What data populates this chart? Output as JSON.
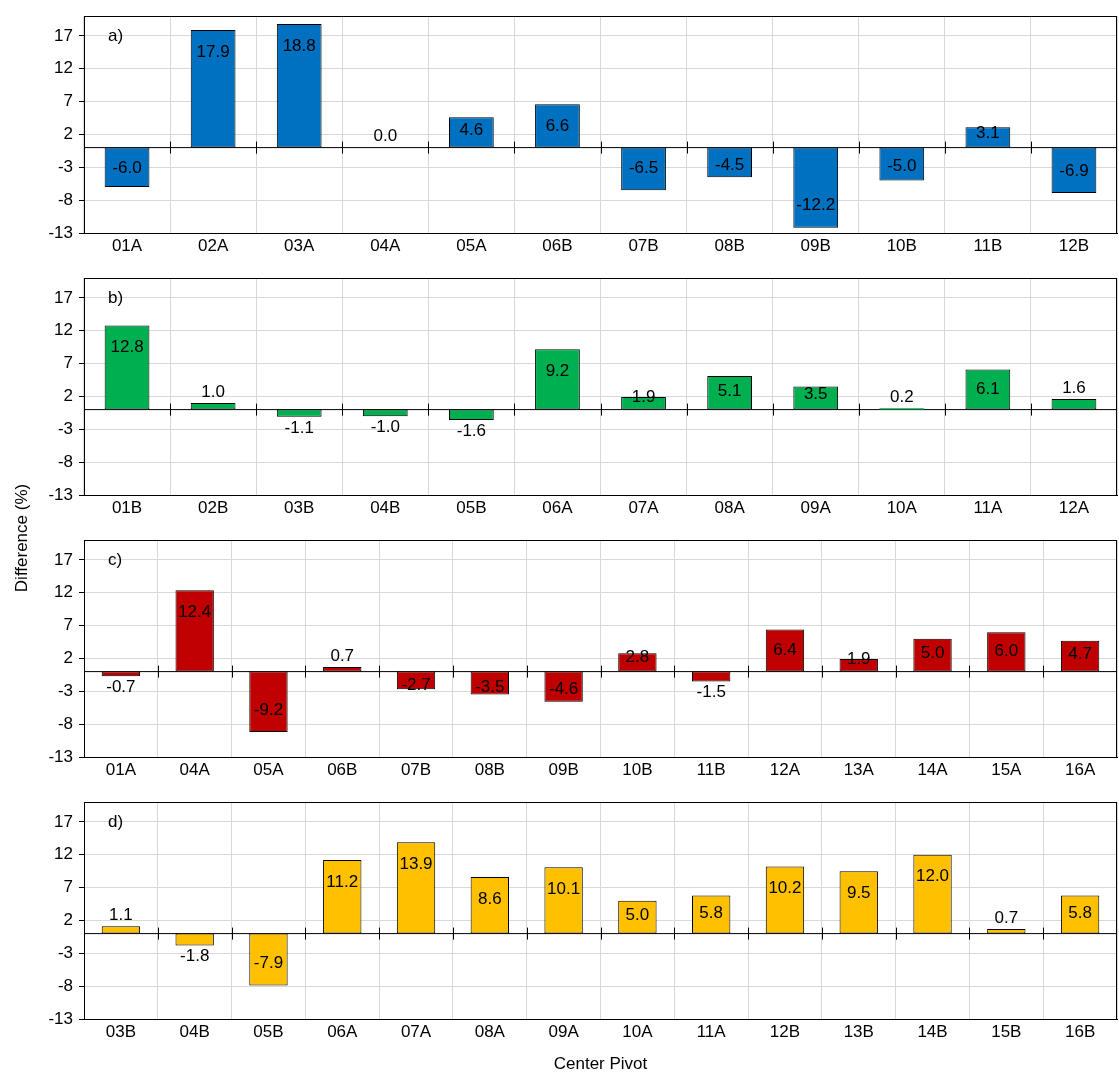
{
  "chart_data": [
    {
      "type": "bar",
      "categories": [
        "01A",
        "02A",
        "03A",
        "04A",
        "05A",
        "06B",
        "07B",
        "08B",
        "09B",
        "10B",
        "11B",
        "12B"
      ],
      "values": [
        -6.0,
        17.9,
        18.8,
        0.0,
        4.6,
        6.6,
        -6.5,
        -4.5,
        -12.2,
        -5.0,
        3.1,
        -6.9
      ],
      "value_labels": [
        "-6.0",
        "17.9",
        "18.8",
        "0.0",
        "4.6",
        "6.6",
        "-6.5",
        "-4.5",
        "-12.2",
        "-5.0",
        "3.1",
        "-6.9"
      ],
      "color": "#0070c0",
      "ylim": [
        -13,
        20
      ],
      "yticks": [
        -13,
        -8,
        -3,
        2,
        7,
        12,
        17
      ],
      "grid": true,
      "annotations": [
        "a)"
      ]
    },
    {
      "type": "bar",
      "categories": [
        "01B",
        "02B",
        "03B",
        "04B",
        "05B",
        "06A",
        "07A",
        "08A",
        "09A",
        "10A",
        "11A",
        "12A"
      ],
      "values": [
        12.8,
        1.0,
        -1.1,
        -1.0,
        -1.6,
        9.2,
        1.9,
        5.1,
        3.5,
        0.2,
        6.1,
        1.6
      ],
      "value_labels": [
        "12.8",
        "1.0",
        "-1.1",
        "-1.0",
        "-1.6",
        "9.2",
        "1.9",
        "5.1",
        "3.5",
        "0.2",
        "6.1",
        "1.6"
      ],
      "color": "#00b050",
      "ylim": [
        -13,
        20
      ],
      "yticks": [
        -13,
        -8,
        -3,
        2,
        7,
        12,
        17
      ],
      "grid": true,
      "annotations": [
        "b)"
      ],
      "ylabel": "Difference (%)"
    },
    {
      "type": "bar",
      "categories": [
        "01A",
        "04A",
        "05A",
        "06B",
        "07B",
        "08B",
        "09B",
        "10B",
        "11B",
        "12A",
        "13A",
        "14A",
        "15A",
        "16A"
      ],
      "values": [
        -0.7,
        12.4,
        -9.2,
        0.7,
        -2.7,
        -3.5,
        -4.6,
        2.8,
        -1.5,
        6.4,
        1.9,
        5.0,
        6.0,
        4.7
      ],
      "value_labels": [
        "-0.7",
        "12.4",
        "-9.2",
        "0.7",
        "-2.7",
        "-3.5",
        "-4.6",
        "2.8",
        "-1.5",
        "6.4",
        "1.9",
        "5.0",
        "6.0",
        "4.7"
      ],
      "color": "#c00000",
      "ylim": [
        -13,
        20
      ],
      "yticks": [
        -13,
        -8,
        -3,
        2,
        7,
        12,
        17
      ],
      "grid": true,
      "annotations": [
        "c)"
      ]
    },
    {
      "type": "bar",
      "categories": [
        "03B",
        "04B",
        "05B",
        "06A",
        "07A",
        "08A",
        "09A",
        "10A",
        "11A",
        "12B",
        "13B",
        "14B",
        "15B",
        "16B"
      ],
      "values": [
        1.1,
        -1.8,
        -7.9,
        11.2,
        13.9,
        8.6,
        10.1,
        5.0,
        5.8,
        10.2,
        9.5,
        12.0,
        0.7,
        5.8
      ],
      "value_labels": [
        "1.1",
        "-1.8",
        "-7.9",
        "11.2",
        "13.9",
        "8.6",
        "10.1",
        "5.0",
        "5.8",
        "10.2",
        "9.5",
        "12.0",
        "0.7",
        "5.8"
      ],
      "color": "#ffc000",
      "ylim": [
        -13,
        20
      ],
      "yticks": [
        -13,
        -8,
        -3,
        2,
        7,
        12,
        17
      ],
      "grid": true,
      "annotations": [
        "d)"
      ],
      "xlabel": "Center Pivot"
    }
  ]
}
